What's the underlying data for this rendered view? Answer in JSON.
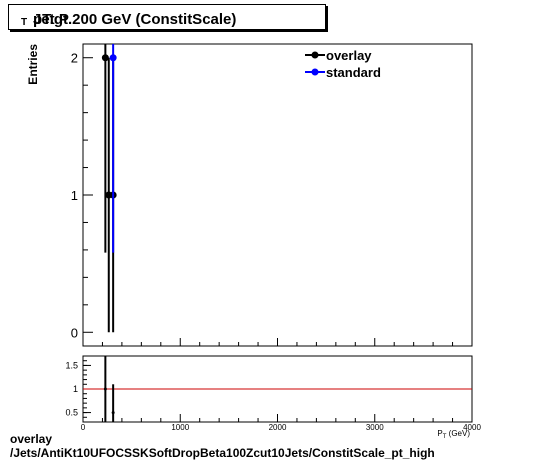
{
  "title_main": "Jet P",
  "title_sub": "T",
  "title_rest": " pT.gt.200 GeV (ConstitScale)",
  "footer": {
    "line1": "overlay",
    "line2": "/Jets/AntiKt10UFOCSSKSoftDropBeta100Zcut10Jets/ConstitScale_pt_high"
  },
  "colors": {
    "overlay": "#000000",
    "standard": "#0000ff",
    "ratio_line": "#cc0000"
  },
  "chart_data": [
    {
      "type": "scatter",
      "panel": "main",
      "ylabel": "Entries",
      "xlim": [
        0,
        4000
      ],
      "ylim": [
        -0.1,
        2.1
      ],
      "y_ticks": [
        0,
        1,
        2
      ],
      "legend_position": "top-right",
      "series": [
        {
          "name": "overlay",
          "color": "#000000",
          "points": [
            {
              "x": 230,
              "y": 2,
              "err": 1.42
            },
            {
              "x": 265,
              "y": 1,
              "err": 1.0
            },
            {
              "x": 310,
              "y": 1,
              "err": 1.0
            }
          ]
        },
        {
          "name": "standard",
          "color": "#0000ff",
          "points": [
            {
              "x": 310,
              "y": 2,
              "err": 1.42
            }
          ]
        }
      ]
    },
    {
      "type": "scatter",
      "panel": "ratio",
      "xlabel": "P_{T} (GeV)",
      "xlim": [
        0,
        4000
      ],
      "ylim": [
        0.3,
        1.7
      ],
      "x_ticks": [
        0,
        1000,
        2000,
        3000,
        4000
      ],
      "y_ticks": [
        0.5,
        1,
        1.5
      ],
      "y_tick_labels": [
        "0.5",
        "1",
        "1.5"
      ],
      "reference_line": 1,
      "series": [
        {
          "name": "ratio",
          "color": "#000000",
          "points": [
            {
              "x": 230,
              "y": 1.0,
              "err": 1.0
            },
            {
              "x": 310,
              "y": 0.5,
              "err": 0.6
            }
          ]
        }
      ]
    }
  ]
}
